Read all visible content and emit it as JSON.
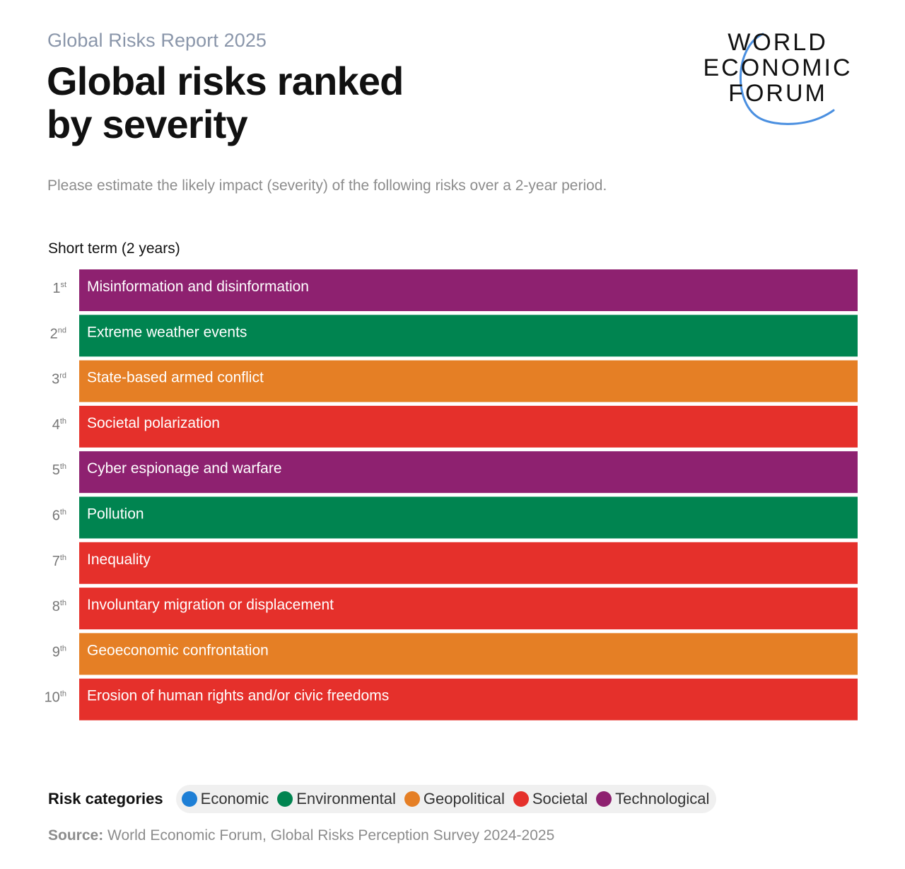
{
  "header": {
    "kicker": "Global Risks Report 2025",
    "title_line1": "Global risks ranked",
    "title_line2": "by severity"
  },
  "logo": {
    "line1": "WORLD",
    "line2": "ECONOMIC",
    "line3": "FORUM",
    "arc_color": "#4a8fe0"
  },
  "question": "Please estimate the likely impact (severity) of the following risks over a 2-year period.",
  "section_label": "Short term (2 years)",
  "chart_data": {
    "type": "table",
    "title": "Global risks ranked by severity",
    "subtitle": "Short term (2 years)",
    "rows": [
      {
        "rank": "1",
        "suffix": "st",
        "label": "Misinformation and disinformation",
        "category": "Technological"
      },
      {
        "rank": "2",
        "suffix": "nd",
        "label": "Extreme weather events",
        "category": "Environmental"
      },
      {
        "rank": "3",
        "suffix": "rd",
        "label": "State-based armed conflict",
        "category": "Geopolitical"
      },
      {
        "rank": "4",
        "suffix": "th",
        "label": "Societal polarization",
        "category": "Societal"
      },
      {
        "rank": "5",
        "suffix": "th",
        "label": "Cyber espionage and warfare",
        "category": "Technological"
      },
      {
        "rank": "6",
        "suffix": "th",
        "label": "Pollution",
        "category": "Environmental"
      },
      {
        "rank": "7",
        "suffix": "th",
        "label": "Inequality",
        "category": "Societal"
      },
      {
        "rank": "8",
        "suffix": "th",
        "label": "Involuntary migration or displacement",
        "category": "Societal"
      },
      {
        "rank": "9",
        "suffix": "th",
        "label": "Geoeconomic confrontation",
        "category": "Geopolitical"
      },
      {
        "rank": "10",
        "suffix": "th",
        "label": "Erosion of human rights and/or civic freedoms",
        "category": "Societal"
      }
    ]
  },
  "legend": {
    "title": "Risk categories",
    "items": [
      {
        "name": "Economic",
        "color": "#1e7fd6"
      },
      {
        "name": "Environmental",
        "color": "#008450"
      },
      {
        "name": "Geopolitical",
        "color": "#e57f25"
      },
      {
        "name": "Societal",
        "color": "#e5302b"
      },
      {
        "name": "Technological",
        "color": "#8e2170"
      }
    ]
  },
  "source": {
    "label": "Source:",
    "text": "World Economic Forum, Global Risks Perception Survey 2024-2025"
  }
}
